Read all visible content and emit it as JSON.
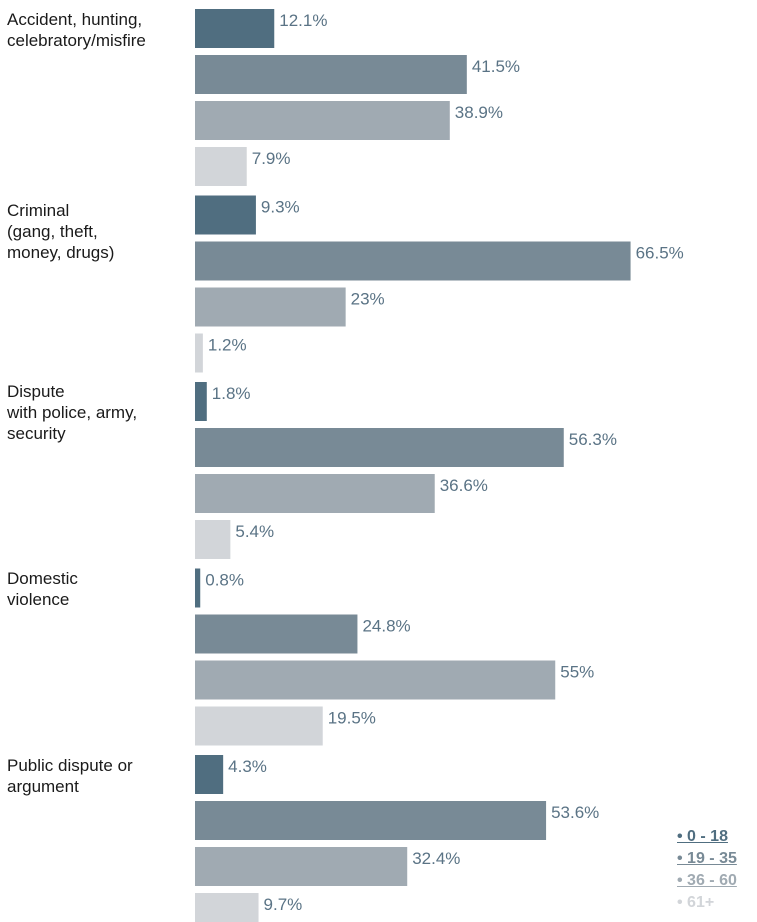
{
  "chart_data": {
    "type": "bar",
    "orientation": "horizontal",
    "categories": [
      "Accident, hunting,\ncelebratory/misfire",
      "Criminal\n(gang, theft,\nmoney, drugs)",
      "Dispute\nwith police, army,\nsecurity",
      "Domestic\nviolence",
      "Public dispute or\nargument"
    ],
    "series": [
      {
        "name": "• 0 - 18",
        "color": "#506e80",
        "values": [
          12.1,
          9.3,
          1.8,
          0.8,
          4.3
        ],
        "labels": [
          "12.1%",
          "9.3%",
          "1.8%",
          "0.8%",
          "4.3%"
        ]
      },
      {
        "name": "• 19 - 35",
        "color": "#788a96",
        "values": [
          41.5,
          66.5,
          56.3,
          24.8,
          53.6
        ],
        "labels": [
          "41.5%",
          "66.5%",
          "56.3%",
          "24.8%",
          "53.6%"
        ]
      },
      {
        "name": "• 36 - 60",
        "color": "#a0aab2",
        "values": [
          38.9,
          23,
          36.6,
          55,
          32.4
        ],
        "labels": [
          "38.9%",
          "23%",
          "36.6%",
          "55%",
          "32.4%"
        ]
      },
      {
        "name": "• 61+",
        "color": "#d2d5d9",
        "values": [
          7.9,
          1.2,
          5.4,
          19.5,
          9.7
        ],
        "labels": [
          "7.9%",
          "1.2%",
          "5.4%",
          "19.5%",
          "9.7%"
        ]
      }
    ],
    "xlim": [
      0,
      100
    ],
    "grid": false,
    "legend_position": "bottom-right"
  },
  "label_color": "#5a7385"
}
